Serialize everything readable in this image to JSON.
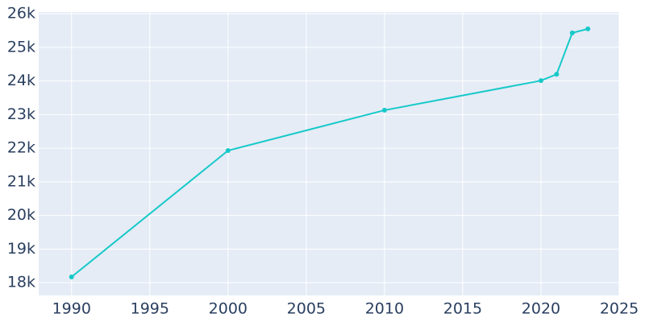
{
  "chart_data": {
    "type": "line",
    "x": [
      1990,
      2000,
      2010,
      2020,
      2021,
      2022,
      2023
    ],
    "series": [
      {
        "color": "#17c9c9",
        "values": [
          18170,
          21930,
          23130,
          24010,
          24200,
          25430,
          25550
        ]
      }
    ],
    "xlim": [
      1987.9,
      2025
    ],
    "ylim": [
      17620,
      26050
    ],
    "xticks": [
      1990,
      1995,
      2000,
      2005,
      2010,
      2015,
      2020,
      2025
    ],
    "yticks": [
      {
        "value": 18000,
        "label": "18k"
      },
      {
        "value": 19000,
        "label": "19k"
      },
      {
        "value": 20000,
        "label": "20k"
      },
      {
        "value": 21000,
        "label": "21k"
      },
      {
        "value": 22000,
        "label": "22k"
      },
      {
        "value": 23000,
        "label": "23k"
      },
      {
        "value": 24000,
        "label": "24k"
      },
      {
        "value": 25000,
        "label": "25k"
      },
      {
        "value": 26000,
        "label": "26k"
      }
    ],
    "grid": true,
    "background": "#e5ecf6"
  }
}
